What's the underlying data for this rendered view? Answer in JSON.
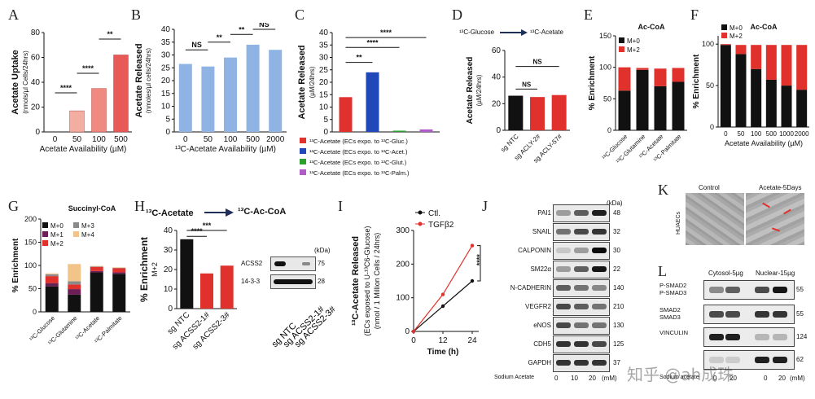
{
  "panels": [
    "A",
    "B",
    "C",
    "D",
    "E",
    "F",
    "G",
    "H",
    "I",
    "J",
    "K",
    "L"
  ],
  "chart_data": [
    {
      "id": "A",
      "type": "bar",
      "categories": [
        "0",
        "50",
        "100",
        "500"
      ],
      "values": [
        0,
        17,
        35,
        62
      ],
      "ylabel": "Acetate Uptake",
      "ylabel2": "(nmols/µl Cells/24hrs)",
      "xlabel": "Acetate Availability (µM)",
      "ylim": [
        0,
        80
      ],
      "yticks": [
        0,
        20,
        40,
        60,
        80
      ],
      "colors": [
        "#f6d0c8",
        "#f3aea2",
        "#ee8a7f",
        "#e85a57"
      ],
      "significance": [
        "****",
        "****",
        "**"
      ]
    },
    {
      "id": "B",
      "type": "bar",
      "categories": [
        "0",
        "50",
        "100",
        "500",
        "2000"
      ],
      "values": [
        26.5,
        25.5,
        29,
        34,
        32
      ],
      "ylabel": "Acetate Released",
      "ylabel2": "(nmoles/µl cells/24hrs)",
      "xlabel": "¹³C-Acetate Availability (µM)",
      "ylim": [
        0,
        40
      ],
      "yticks": [
        0,
        5,
        10,
        15,
        20,
        25,
        30,
        35,
        40
      ],
      "color": "#8fb4e4",
      "significance": [
        "NS",
        "**",
        "**",
        "NS"
      ]
    },
    {
      "id": "C",
      "type": "bar",
      "values": [
        14,
        24,
        0.5,
        1
      ],
      "colors": [
        "#e0312c",
        "#2048b8",
        "#2ca02c",
        "#b05cc8"
      ],
      "ylabel": "Acetate Released",
      "ylabel2": "(µM/24hrs)",
      "ylim": [
        0,
        40
      ],
      "yticks": [
        0,
        5,
        10,
        15,
        20,
        25,
        30,
        35,
        40
      ],
      "significance": [
        "**",
        "****",
        "****"
      ],
      "legend": [
        "¹³C-Acetate (ECs expo. to ¹³C-Gluc.)",
        "¹³C-Acetate (ECs expo. to ¹³C-Acet.)",
        "¹³C-Acetate (ECs expo. to ¹³C-Glut.)",
        "¹³C-Acetate (ECs expo. to ¹³C-Palm.)"
      ]
    },
    {
      "id": "D",
      "type": "bar",
      "header_left": "¹³C-Glucose",
      "header_right": "¹³C-Acetate",
      "categories": [
        "sg NTC",
        "sg ACLY-2#",
        "sg ACLY-57#"
      ],
      "values": [
        26,
        25,
        26.5
      ],
      "colors": [
        "#111111",
        "#e0312c",
        "#e0312c"
      ],
      "ylabel": "Acetate Released",
      "ylabel2": "(µM/24hrs)",
      "ylim": [
        0,
        60
      ],
      "yticks": [
        0,
        20,
        40,
        60
      ],
      "significance": [
        "NS",
        "NS"
      ]
    },
    {
      "id": "E",
      "type": "bar",
      "title": "Ac-CoA",
      "categories": [
        "¹³C-Glucose",
        "¹³C-Glutamine",
        "¹³C-Acetate",
        "¹³C-Palmitate"
      ],
      "series": [
        {
          "name": "M+0",
          "values": [
            63,
            96,
            70,
            77
          ],
          "color": "#111111"
        },
        {
          "name": "M+2",
          "values": [
            37,
            3,
            28,
            22
          ],
          "color": "#e0312c"
        }
      ],
      "ylabel": "% Enrichment",
      "ylim": [
        0,
        150
      ],
      "yticks": [
        0,
        50,
        100,
        150
      ]
    },
    {
      "id": "F",
      "type": "bar",
      "title": "Ac-CoA",
      "categories": [
        "0",
        "50",
        "100",
        "500",
        "1000",
        "2000"
      ],
      "series": [
        {
          "name": "M+0",
          "values": [
            99,
            88,
            70,
            57,
            50,
            45
          ],
          "color": "#111111"
        },
        {
          "name": "M+2",
          "values": [
            1,
            11,
            29,
            42,
            49,
            54
          ],
          "color": "#e0312c"
        }
      ],
      "ylabel": "% Enrichment",
      "xlabel": "Acetate Availability (µM)",
      "ylim": [
        0,
        110
      ],
      "yticks": [
        0,
        50,
        100
      ]
    },
    {
      "id": "G",
      "type": "bar",
      "title": "Succinyl-CoA",
      "categories": [
        "¹³C-Glucose",
        "¹³C-Glutamine",
        "¹³C-Acetate",
        "¹³C-Palmitate"
      ],
      "series": [
        {
          "name": "M+0",
          "values": [
            55,
            37,
            85,
            82
          ],
          "color": "#111111"
        },
        {
          "name": "M+1",
          "values": [
            7,
            12,
            3,
            3
          ],
          "color": "#6b1f55"
        },
        {
          "name": "M+2",
          "values": [
            15,
            10,
            9,
            9
          ],
          "color": "#e0312c"
        },
        {
          "name": "M+3",
          "values": [
            4,
            7,
            1,
            1
          ],
          "color": "#8a8a8a"
        },
        {
          "name": "M+4",
          "values": [
            2,
            37,
            1,
            1
          ],
          "color": "#f2c48a"
        }
      ],
      "ylabel": "% Enrichment",
      "ylim": [
        0,
        200
      ],
      "yticks": [
        0,
        50,
        100,
        150,
        200
      ]
    },
    {
      "id": "H",
      "type": "bar",
      "header_left": "¹³C-Acetate",
      "header_right": "¹³C-Ac-CoA",
      "categories": [
        "sg NTC",
        "sg ACSS2-1#",
        "sg ACSS2-3#"
      ],
      "values": [
        35.5,
        18,
        22
      ],
      "colors": [
        "#111111",
        "#e0312c",
        "#e0312c"
      ],
      "ylabel": "% Enrichment",
      "ylabel2": "M+2",
      "ylim": [
        0,
        40
      ],
      "yticks": [
        0,
        10,
        20,
        30,
        40
      ],
      "significance": [
        "****",
        "***"
      ]
    },
    {
      "id": "I",
      "type": "line",
      "x": [
        0,
        12,
        24
      ],
      "series": [
        {
          "name": "Ctl.",
          "values": [
            0,
            75,
            150
          ],
          "color": "#111111"
        },
        {
          "name": "TGFβ2",
          "values": [
            0,
            110,
            255
          ],
          "color": "#e0312c"
        }
      ],
      "ylabel": "¹³C-Acetate Released",
      "ylabel2": "(ECs exposed to U-¹³C6-Glucose)",
      "ylabel3": "(nmol / 1 Million Cells / 24hrs)",
      "xlabel": "Time (h)",
      "ylim": [
        0,
        300
      ],
      "yticks": [
        0,
        100,
        200,
        300
      ],
      "significance": [
        "****"
      ]
    }
  ],
  "blotH": {
    "kda": "(kDa)",
    "rows": [
      {
        "label": "ACSS2",
        "mw": "75"
      },
      {
        "label": "14-3-3",
        "mw": "28"
      }
    ],
    "lanes": [
      "sg NTC",
      "sg ACSS2-1#",
      "sg ACSS2-3#"
    ]
  },
  "blotJ": {
    "kda": "(kDa)",
    "rows": [
      {
        "label": "PAI1",
        "mw": "48"
      },
      {
        "label": "SNAIL",
        "mw": "32"
      },
      {
        "label": "CALPONIN",
        "mw": "30"
      },
      {
        "label": "SM22α",
        "mw": "22"
      },
      {
        "label": "N-CADHERIN",
        "mw": "140"
      },
      {
        "label": "VEGFR2",
        "mw": "210"
      },
      {
        "label": "eNOS",
        "mw": "130"
      },
      {
        "label": "CDH5",
        "mw": "125"
      },
      {
        "label": "GAPDH",
        "mw": "37"
      }
    ],
    "footer": "Sodium Acetate",
    "doses": [
      "0",
      "10",
      "20",
      "(mM)"
    ]
  },
  "panelK": {
    "control": "Control",
    "treated": "Acetate-5Days",
    "side": "HUAECs"
  },
  "blotL": {
    "header_left": "Cytosol-5µg",
    "header_right": "Nuclear-15µg",
    "rows": [
      {
        "label": "P-SMAD2",
        "label2": "P-SMAD3",
        "mw": "55"
      },
      {
        "label": "SMAD2",
        "label2": "SMAD3",
        "mw": "55"
      },
      {
        "label": "VINCULIN",
        "label2": "",
        "mw": "124"
      },
      {
        "label": "",
        "label2": "",
        "mw": "62"
      }
    ],
    "footer": "Sodium acetate",
    "doses": [
      "0",
      "20",
      "0",
      "20"
    ],
    "unit": "(mM)"
  },
  "watermark": "知乎 @ah成珠"
}
